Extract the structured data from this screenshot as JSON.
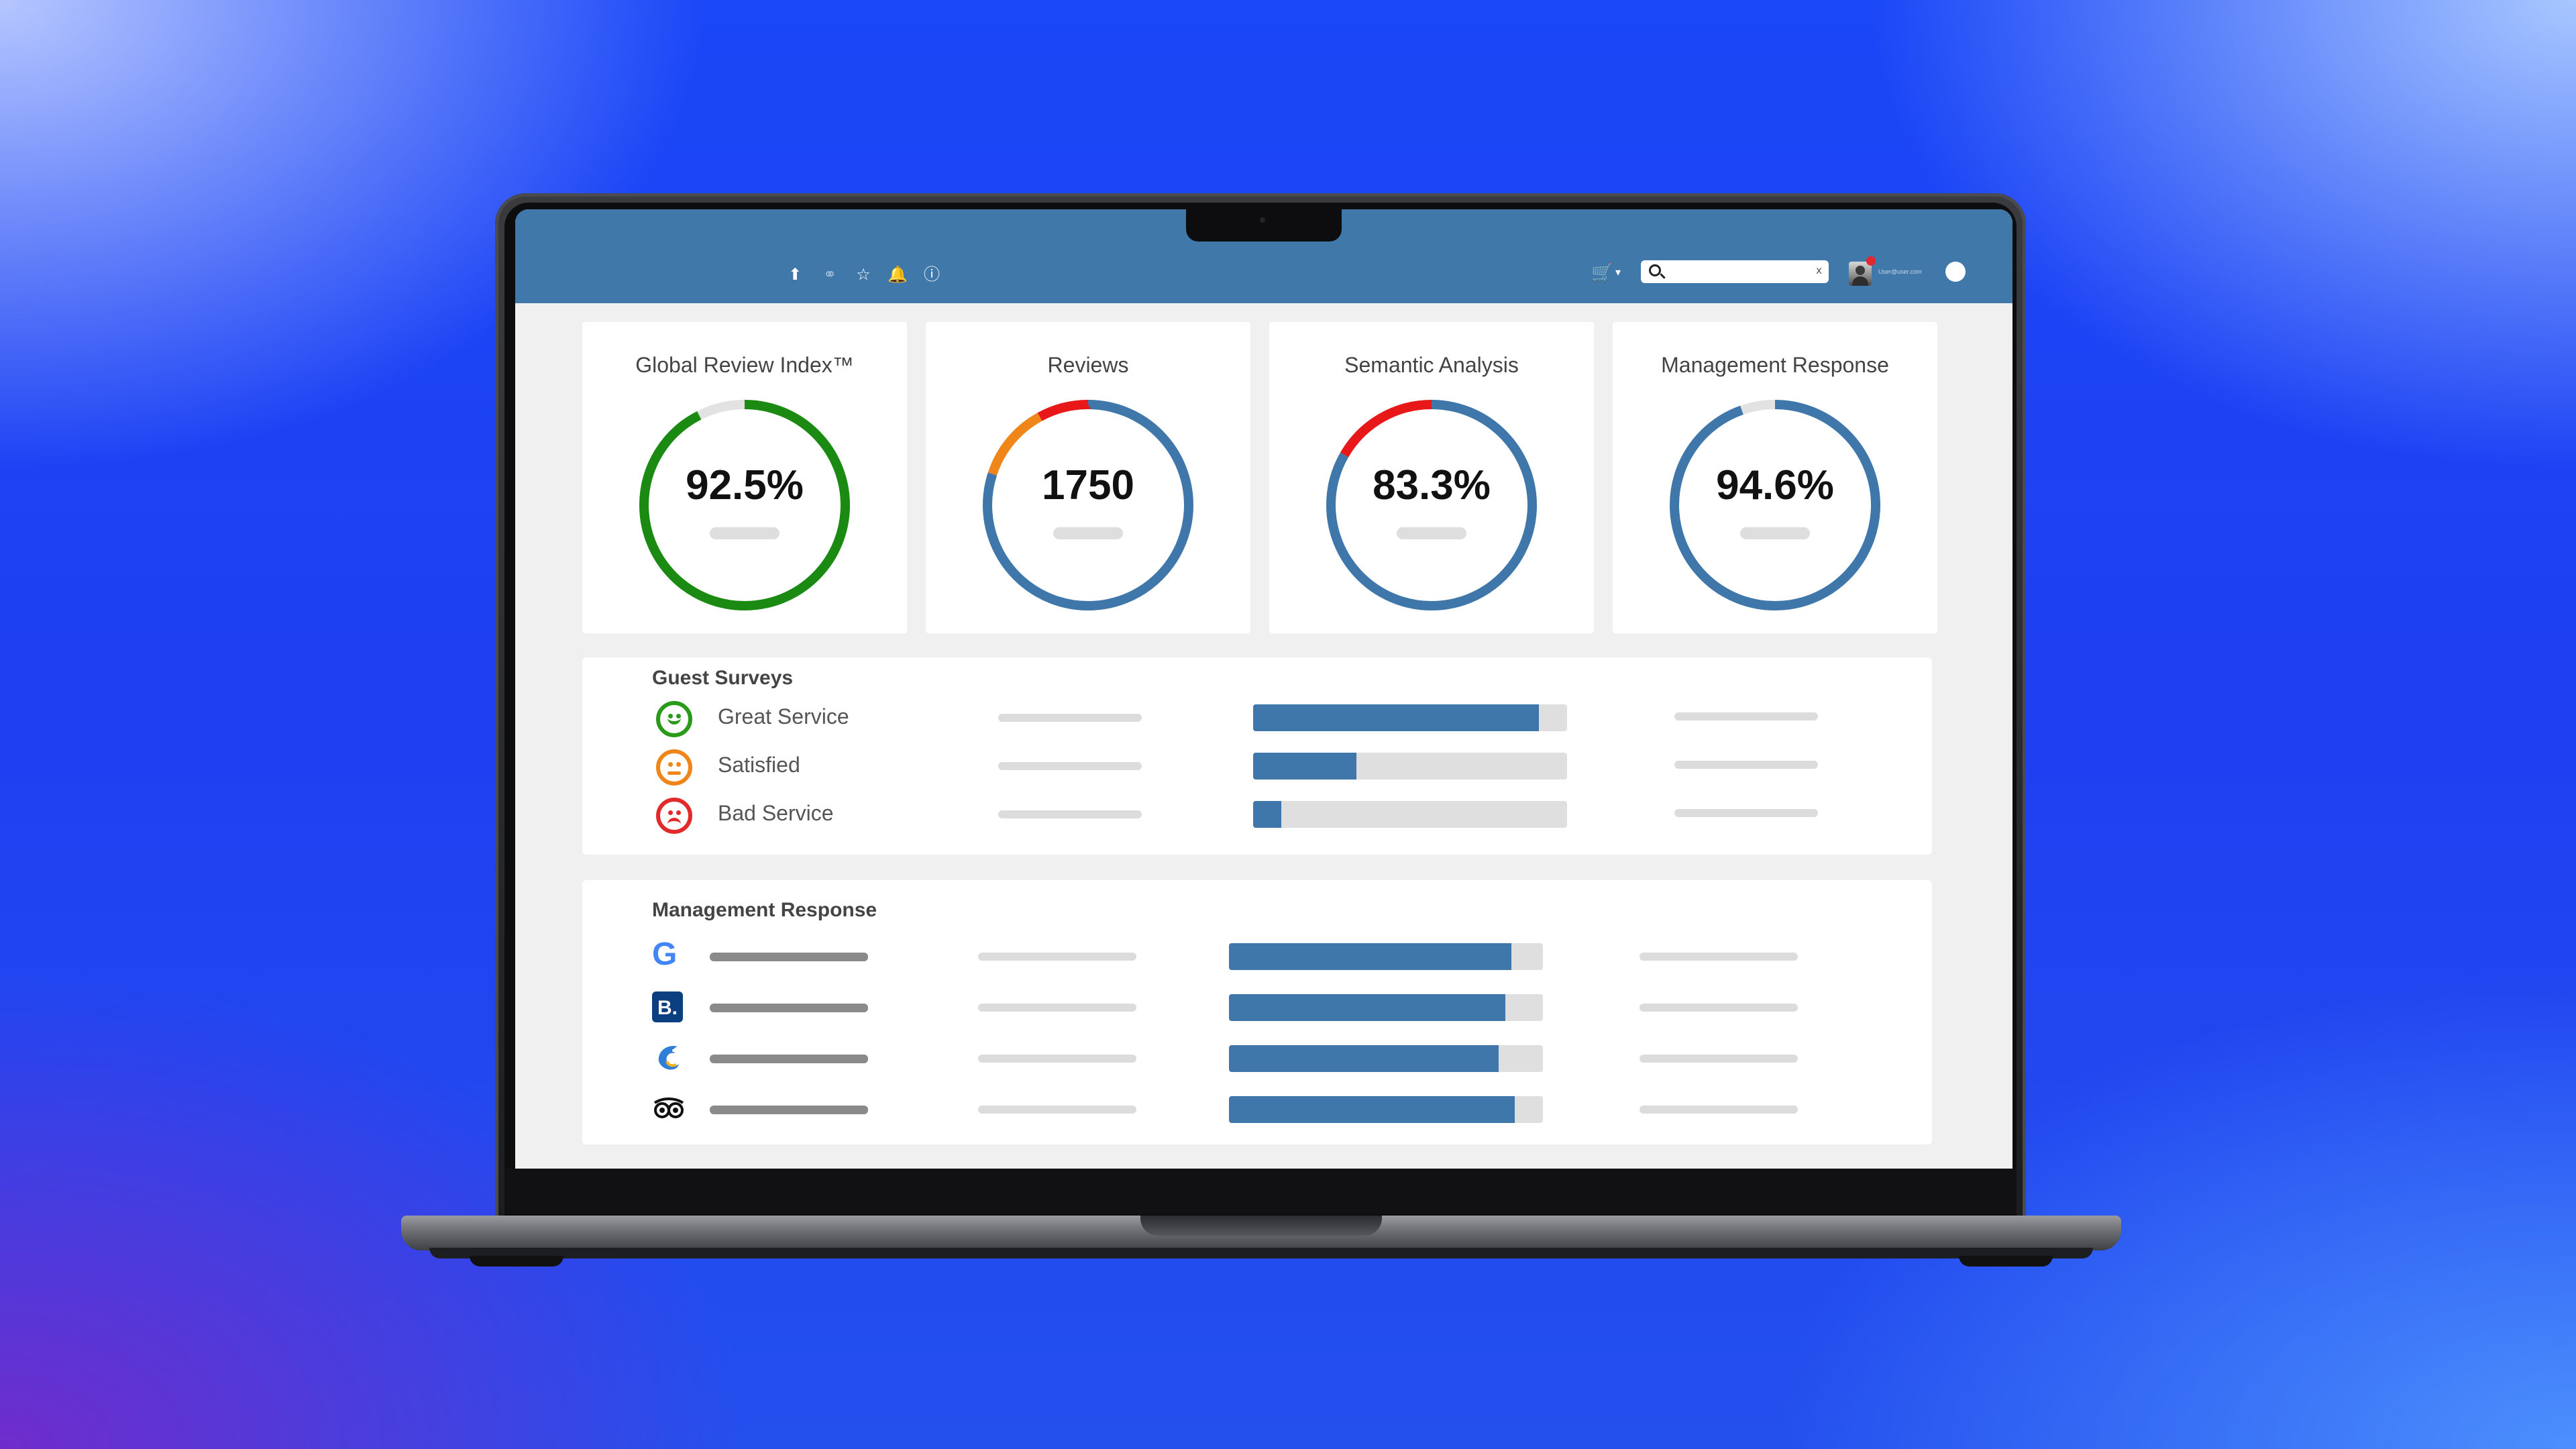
{
  "topbar": {
    "icons": [
      "upload-icon",
      "link-icon",
      "star-icon",
      "bell-icon",
      "info-icon",
      "cart-icon",
      "search-icon",
      "avatar",
      "status-dot"
    ],
    "search": {
      "value": "",
      "placeholder": ""
    },
    "search_clear": "x",
    "user_email": "User@user.com"
  },
  "kpis": [
    {
      "title": "Global Review Index™",
      "value": "92.5%",
      "segments": [
        {
          "fraction": 0.925,
          "color": "#1a8a12"
        }
      ]
    },
    {
      "title": "Reviews",
      "value": "1750",
      "segments": [
        {
          "fraction": 0.8,
          "color": "#3f77ab"
        },
        {
          "fraction": 0.12,
          "color": "#f0861a"
        },
        {
          "fraction": 0.08,
          "color": "#e81818"
        }
      ]
    },
    {
      "title": "Semantic Analysis",
      "value": "83.3%",
      "segments": [
        {
          "fraction": 0.833,
          "color": "#3f77ab"
        },
        {
          "fraction": 0.167,
          "color": "#e81818"
        }
      ]
    },
    {
      "title": "Management Response",
      "value": "94.6%",
      "segments": [
        {
          "fraction": 0.946,
          "color": "#3f77ab"
        }
      ]
    }
  ],
  "guest_surveys": {
    "title": "Guest Surveys",
    "rows": [
      {
        "label": "Great Service",
        "icon": "happy-face-icon",
        "color": "#2a9a1a",
        "fill": 0.91
      },
      {
        "label": "Satisfied",
        "icon": "neutral-face-icon",
        "color": "#f0861a",
        "fill": 0.33
      },
      {
        "label": "Bad Service",
        "icon": "sad-face-icon",
        "color": "#e32a2a",
        "fill": 0.09
      }
    ]
  },
  "management_response": {
    "title": "Management Response",
    "rows": [
      {
        "icon": "google-logo-icon",
        "logo_text": "G",
        "fill": 0.9
      },
      {
        "icon": "booking-logo-icon",
        "logo_text": "B.",
        "fill": 0.88
      },
      {
        "icon": "dolphin-logo-icon",
        "logo_text": "",
        "fill": 0.86
      },
      {
        "icon": "tripadvisor-logo-icon",
        "logo_text": "",
        "fill": 0.91
      }
    ]
  }
}
